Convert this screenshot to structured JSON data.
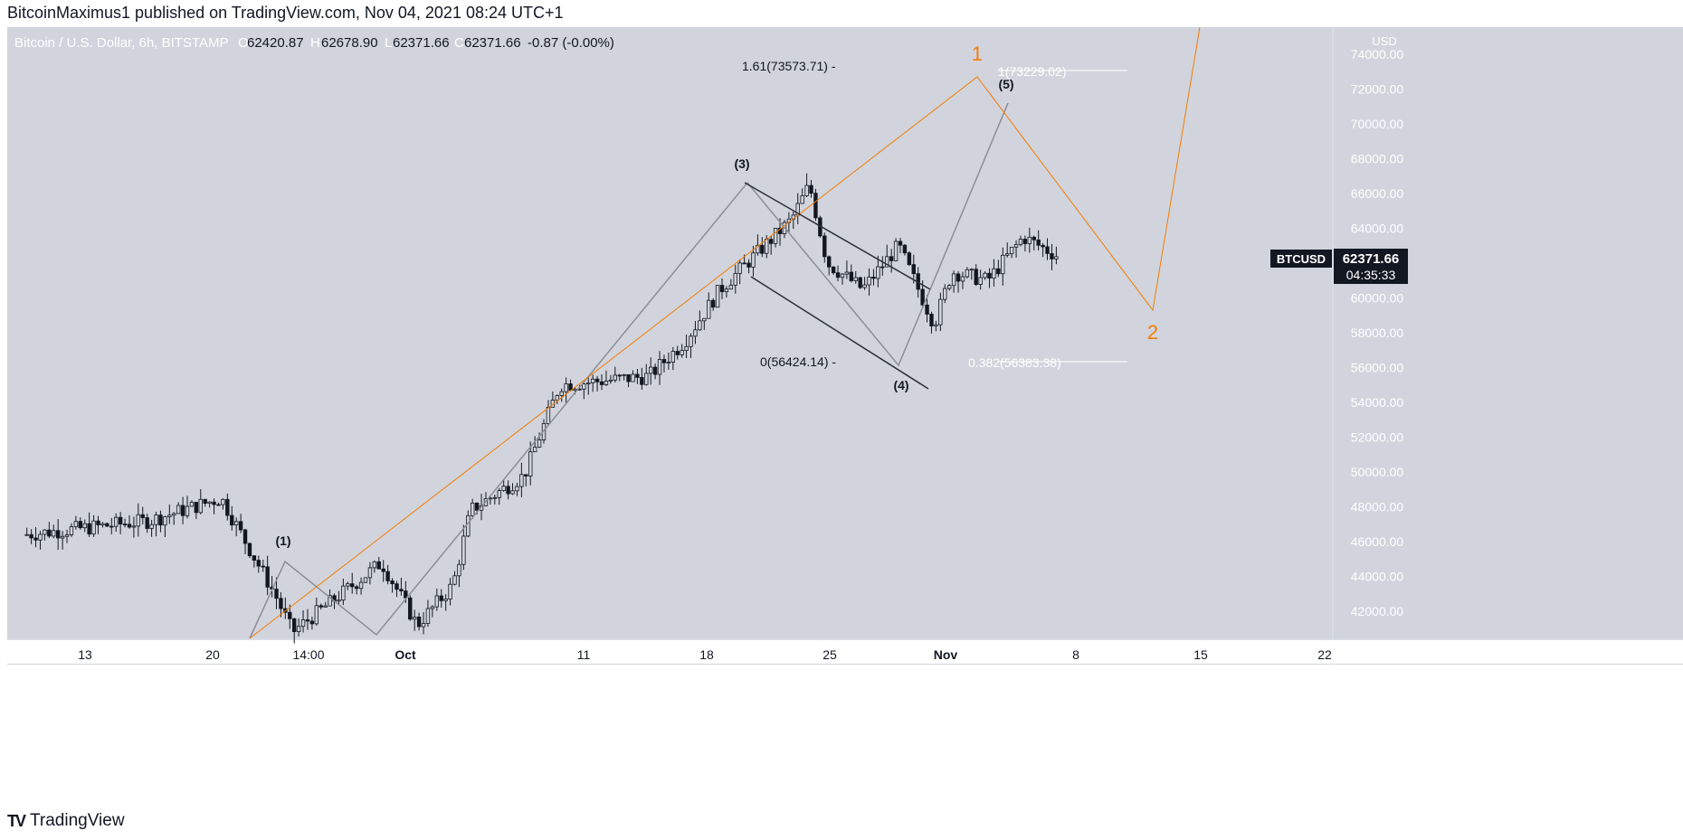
{
  "header": {
    "published": "BitcoinMaximus1 published on TradingView.com, Nov 04, 2021 08:24 UTC+1"
  },
  "legend": {
    "symbol": "Bitcoin / U.S. Dollar, 6h, BITSTAMP",
    "o_label": "O",
    "o": "62420.87",
    "h_label": "H",
    "h": "62678.90",
    "l_label": "L",
    "l": "62371.66",
    "c_label": "C",
    "c": "62371.66",
    "change": "-0.87 (-0.00%)"
  },
  "price_axis": {
    "currency": "USD",
    "ticks": [
      "74000.00",
      "72000.00",
      "70000.00",
      "68000.00",
      "66000.00",
      "64000.00",
      "62000.00",
      "60000.00",
      "58000.00",
      "56000.00",
      "54000.00",
      "52000.00",
      "50000.00",
      "48000.00",
      "46000.00",
      "44000.00",
      "42000.00"
    ]
  },
  "price_label": {
    "symbol": "BTCUSD",
    "price": "62371.66",
    "countdown": "04:35:33"
  },
  "time_axis": {
    "ticks": [
      "13",
      "20",
      "14:00",
      "Oct",
      "11",
      "18",
      "25",
      "Nov",
      "8",
      "15",
      "22"
    ]
  },
  "fib": {
    "ext": "1.61(73573.71) -",
    "base": "0(56424.14) -",
    "target": "1(73229.02)",
    "retrace": "0.382(56383.38)"
  },
  "waves": {
    "w1": "(1)",
    "w3": "(3)",
    "w4": "(4)",
    "w5": "(5)",
    "big1": "1",
    "big2": "2"
  },
  "colors": {
    "plot_bg": "#d1d4dc",
    "candle": "#131722",
    "wave_line": "#8c8e96",
    "orange": "#f57c00",
    "channel": "#2a2e39",
    "white": "#ffffff"
  },
  "footer": {
    "brand": "TradingView"
  },
  "chart_data": {
    "type": "candlestick",
    "symbol": "Bitcoin / U.S. Dollar, 6h, BITSTAMP",
    "y_range": [
      40400,
      75200
    ],
    "key_prices": [
      {
        "date": "2021-09-07",
        "price": 46400
      },
      {
        "date": "2021-09-14",
        "price": 47200
      },
      {
        "date": "2021-09-18",
        "price": 48500
      },
      {
        "date": "2021-09-21",
        "price": 43000
      },
      {
        "date": "2021-09-22",
        "price": 40800
      },
      {
        "date": "2021-09-27",
        "price": 44800
      },
      {
        "date": "2021-09-29",
        "price": 41200
      },
      {
        "date": "2021-10-01",
        "price": 43500
      },
      {
        "date": "2021-10-02",
        "price": 47800
      },
      {
        "date": "2021-10-05",
        "price": 49800
      },
      {
        "date": "2021-10-07",
        "price": 55000
      },
      {
        "date": "2021-10-12",
        "price": 55500
      },
      {
        "date": "2021-10-14",
        "price": 57500
      },
      {
        "date": "2021-10-16",
        "price": 60500
      },
      {
        "date": "2021-10-20",
        "price": 64500
      },
      {
        "date": "2021-10-21",
        "price": 66500
      },
      {
        "date": "2021-10-22",
        "price": 62000
      },
      {
        "date": "2021-10-24",
        "price": 60500
      },
      {
        "date": "2021-10-26",
        "price": 63000
      },
      {
        "date": "2021-10-28",
        "price": 58500
      },
      {
        "date": "2021-10-29",
        "price": 61500
      },
      {
        "date": "2021-10-31",
        "price": 61000
      },
      {
        "date": "2021-11-02",
        "price": 63500
      },
      {
        "date": "2021-11-04",
        "price": 62372
      }
    ],
    "wave_labels": [
      {
        "label": "(1)",
        "date": "2021-09-27",
        "price": 45000
      },
      {
        "label": "(3)",
        "date": "2021-10-20",
        "price": 66900
      },
      {
        "label": "(4)",
        "date": "2021-10-28",
        "price": 56400
      },
      {
        "label": "(5)",
        "date": "2021-11-02",
        "price": 71500
      },
      {
        "label": "1",
        "date": "2021-11-03",
        "price": 72900
      },
      {
        "label": "2",
        "date": "2021-11-11",
        "price": 59500
      }
    ],
    "fib_levels": [
      {
        "label": "1.61",
        "price": 73573.71
      },
      {
        "label": "0",
        "price": 56424.14
      },
      {
        "label": "1",
        "price": 73229.02
      },
      {
        "label": "0.382",
        "price": 56383.38
      }
    ],
    "last_price": 62371.66
  }
}
